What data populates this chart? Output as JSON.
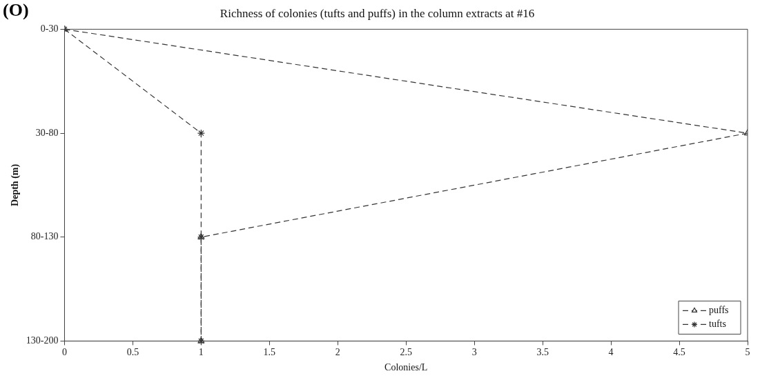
{
  "chart_data": {
    "type": "line",
    "orientation": "horizontal",
    "title": "Richness of colonies (tufts and puffs) in the column extracts at #16",
    "xlabel": "Colonies/L",
    "ylabel": "Depth (m)",
    "annotations": [
      "(O)"
    ],
    "categories": [
      "0-30",
      "30-80",
      "80-130",
      "130-200"
    ],
    "series": [
      {
        "name": "puffs",
        "color": "#333333",
        "marker": "triangle",
        "values": [
          0,
          5,
          1,
          1
        ]
      },
      {
        "name": "tufts",
        "color": "#333333",
        "marker": "cross",
        "values": [
          0,
          1,
          1,
          1
        ]
      }
    ],
    "xlim": [
      0,
      5
    ],
    "xticks": [
      0,
      0.5,
      1,
      1.5,
      2,
      2.5,
      3,
      3.5,
      4,
      4.5,
      5
    ],
    "line_style": "dashed",
    "grid": false,
    "legend": "bottom right"
  }
}
